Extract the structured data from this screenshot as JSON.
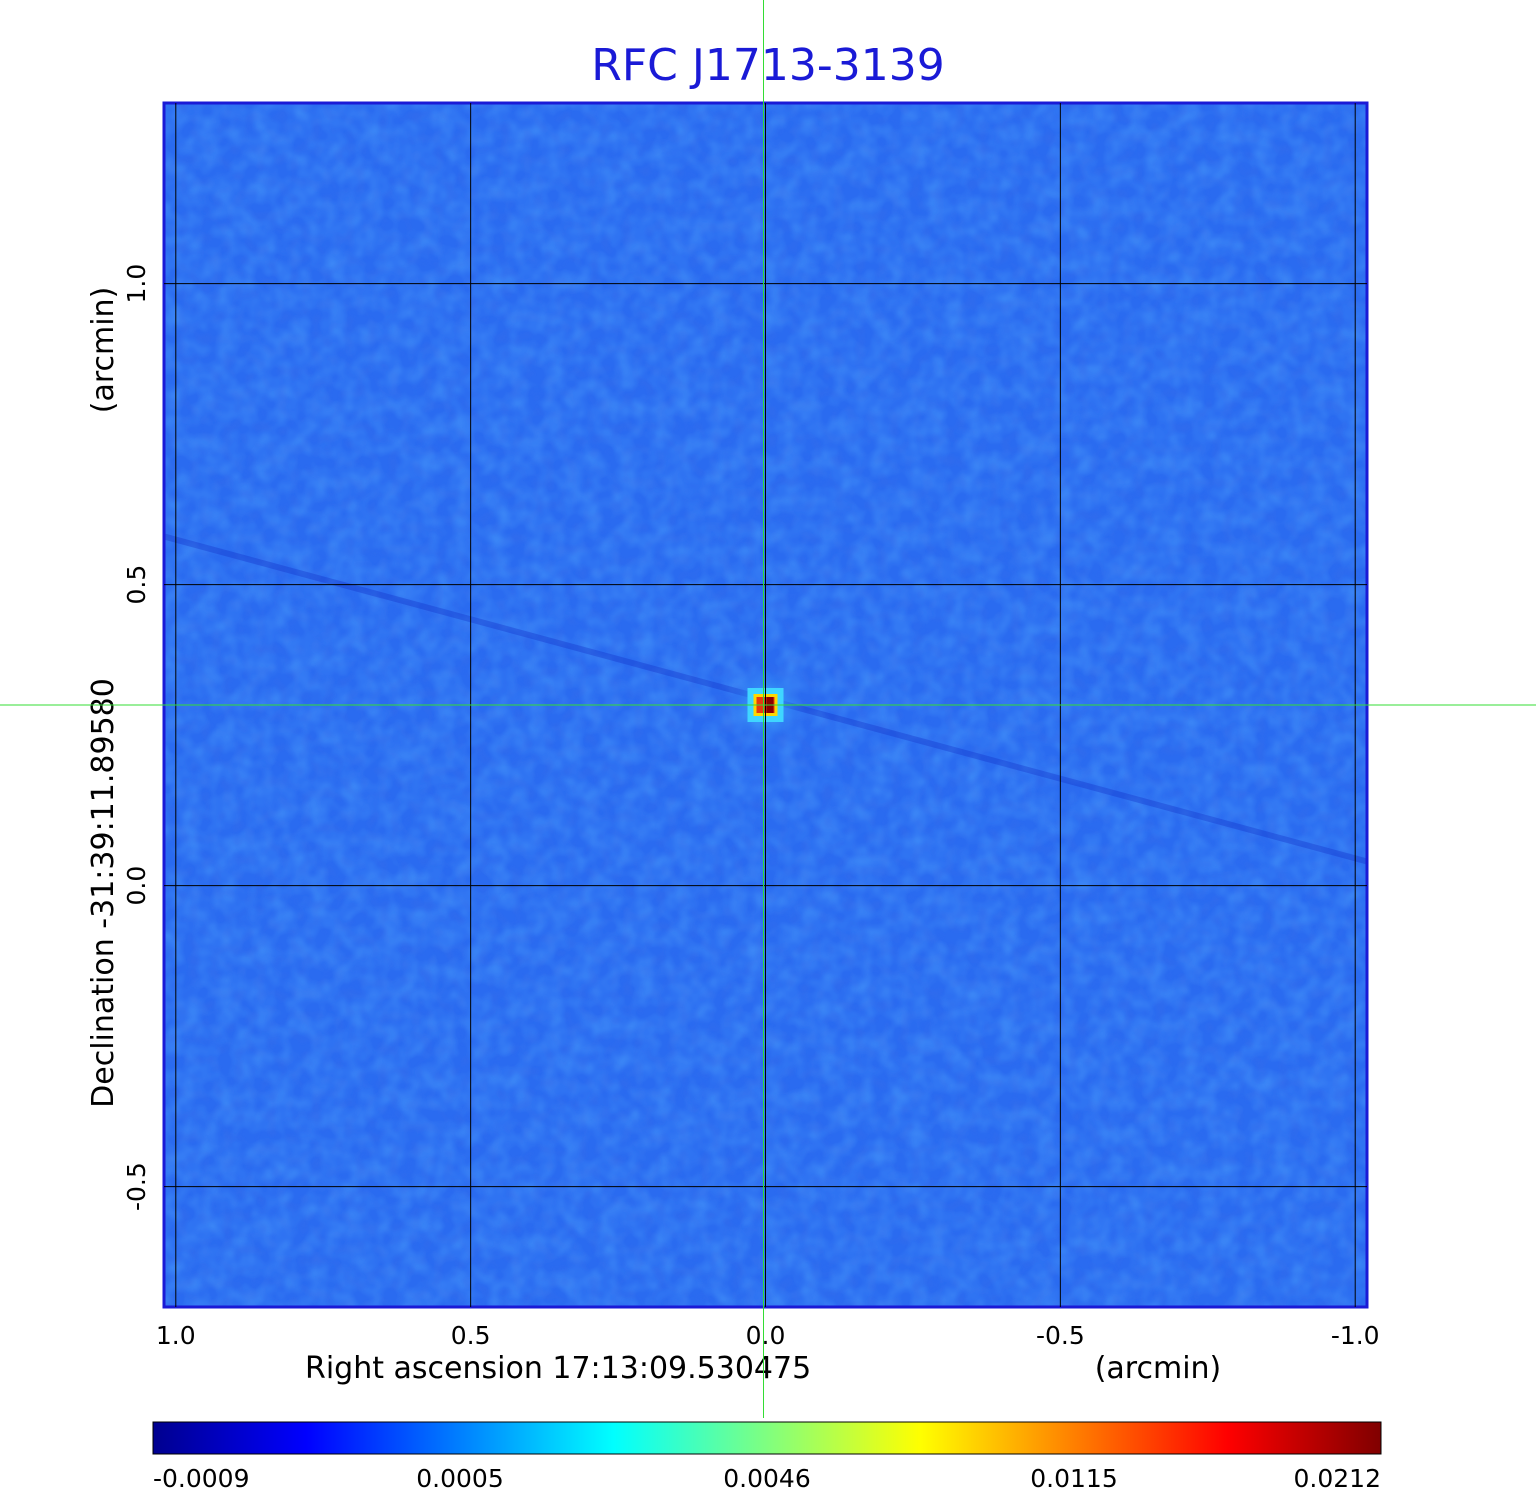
{
  "chart_data": {
    "type": "heatmap",
    "title": "RFC J1713-3139",
    "xlabel": "Right ascension  17:13:09.530475",
    "xunit": "(arcmin)",
    "ylabel": "Declination  -31:39:11.89580",
    "yunit": "(arcmin)",
    "xlim": [
      1.02,
      -1.02
    ],
    "ylim": [
      -0.7,
      1.3
    ],
    "x_ticks": [
      {
        "value": 1.0,
        "label": "1.0"
      },
      {
        "value": 0.5,
        "label": "0.5"
      },
      {
        "value": 0.0,
        "label": "0.0"
      },
      {
        "value": -0.5,
        "label": "-0.5"
      },
      {
        "value": -1.0,
        "label": "-1.0"
      }
    ],
    "y_ticks": [
      {
        "value": 1.0,
        "label": "1.0"
      },
      {
        "value": 0.5,
        "label": "0.5"
      },
      {
        "value": 0.0,
        "label": "0.0"
      },
      {
        "value": -0.5,
        "label": "-0.5"
      }
    ],
    "grid": true,
    "source_peak": {
      "x": 0.0,
      "y": 0.3,
      "value": 0.0212
    },
    "crosshair": {
      "x": 0.0,
      "y": 0.3
    },
    "colorbar": {
      "placement": "bottom",
      "colormap": "jet",
      "ticks": [
        "-0.0009",
        "0.0005",
        "0.0046",
        "0.0115",
        "0.0212"
      ],
      "min": -0.0009,
      "max": 0.0212
    },
    "colors": {
      "background_field": "#2a6bf0",
      "frame": "#1a1ad6",
      "crosshair": "#33dd33",
      "title": "#1a1ad6"
    }
  }
}
